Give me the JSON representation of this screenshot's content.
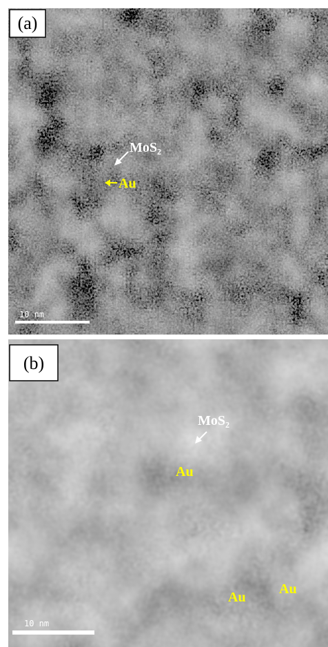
{
  "panels": [
    {
      "label": "(a)",
      "mos2": "MoS₂",
      "au": "Au",
      "scale_bar": "10 nm"
    },
    {
      "label": "(b)",
      "mos2": "MoS₂",
      "au": "Au",
      "scale_bar": "10 nm",
      "inset": {
        "au_left": "Au",
        "au_right": "Au"
      }
    }
  ]
}
